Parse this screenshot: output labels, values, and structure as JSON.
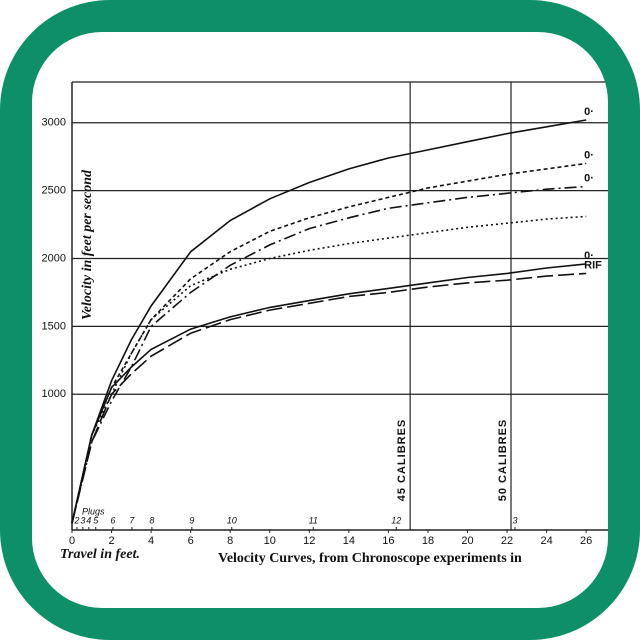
{
  "chart_data": {
    "type": "line",
    "title": "Velocity Curves, from Chronoscope experiments in",
    "y_label": "Velocity in feet per second",
    "x_label": "Travel in feet.",
    "plugs_label": "Plugs",
    "x": [
      0,
      1,
      2,
      3,
      4,
      6,
      8,
      10,
      12,
      14,
      16,
      18,
      20,
      22,
      24,
      26
    ],
    "series": [
      {
        "name": "0·",
        "color": "#111",
        "dash": "none",
        "values": [
          50,
          700,
          1100,
          1400,
          1650,
          2050,
          2280,
          2440,
          2560,
          2660,
          2740,
          2800,
          2860,
          2920,
          2970,
          3020
        ]
      },
      {
        "name": "0·",
        "color": "#111",
        "dash": "4 3",
        "values": [
          50,
          700,
          1050,
          1300,
          1550,
          1850,
          2050,
          2200,
          2300,
          2380,
          2450,
          2520,
          2570,
          2620,
          2660,
          2700
        ]
      },
      {
        "name": "0·",
        "color": "#111",
        "dash": "12 4 2 4",
        "values": [
          50,
          650,
          950,
          1200,
          1500,
          1750,
          1950,
          2100,
          2220,
          2300,
          2370,
          2410,
          2450,
          2480,
          2510,
          2530
        ]
      },
      {
        "color": "#111",
        "dash": "2 3",
        "values": [
          50,
          700,
          1000,
          1300,
          1550,
          1800,
          1920,
          2000,
          2060,
          2110,
          2150,
          2190,
          2230,
          2260,
          2290,
          2310
        ]
      },
      {
        "name": "0·",
        "color": "#111",
        "dash": "none",
        "values": [
          50,
          700,
          1050,
          1200,
          1330,
          1480,
          1570,
          1640,
          1690,
          1740,
          1780,
          1820,
          1860,
          1890,
          1930,
          1960
        ]
      },
      {
        "name": "RIF",
        "color": "#111",
        "dash": "16 5",
        "values": [
          50,
          650,
          1000,
          1150,
          1280,
          1450,
          1550,
          1620,
          1670,
          1720,
          1750,
          1790,
          1820,
          1840,
          1870,
          1890
        ]
      }
    ],
    "xlim": [
      0,
      26.7
    ],
    "ylim": [
      0,
      3300
    ],
    "xticks": [
      0,
      2,
      4,
      6,
      8,
      10,
      12,
      14,
      16,
      18,
      20,
      22,
      24,
      26
    ],
    "yticks": [
      1000,
      1500,
      2000,
      2500,
      3000
    ],
    "grid": true,
    "plugs": [
      {
        "label": 2,
        "x": 0.25
      },
      {
        "label": 3,
        "x": 0.55
      },
      {
        "label": 4,
        "x": 0.85
      },
      {
        "label": 5,
        "x": 1.2
      },
      {
        "label": 6,
        "x": 2.07
      },
      {
        "label": 7,
        "x": 3.03
      },
      {
        "label": 8,
        "x": 4.04
      },
      {
        "label": 9,
        "x": 6.06
      },
      {
        "label": 10,
        "x": 8.08
      },
      {
        "label": 11,
        "x": 12.2
      },
      {
        "label": 12,
        "x": 16.4
      },
      {
        "label": 3,
        "x": 22.4
      }
    ],
    "calibres": [
      {
        "label": "45 CALIBRES",
        "x": 17.1
      },
      {
        "label": "50 CALIBRES",
        "x": 22.2
      }
    ]
  }
}
